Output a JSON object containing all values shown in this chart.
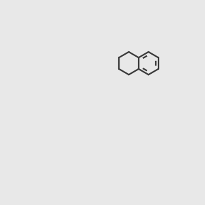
{
  "bg_color": "#e8e8e8",
  "bond_color": "#4a4a4a",
  "bond_width": 1.5,
  "double_bond_color": "#4a4a4a",
  "oxygen_color": "#cc2200",
  "nitrogen_color": "#2244cc",
  "hydroxyl_color": "#5a8a8a",
  "carbon_implicit": "#4a4a4a",
  "figsize": [
    3.0,
    3.0
  ],
  "dpi": 100
}
